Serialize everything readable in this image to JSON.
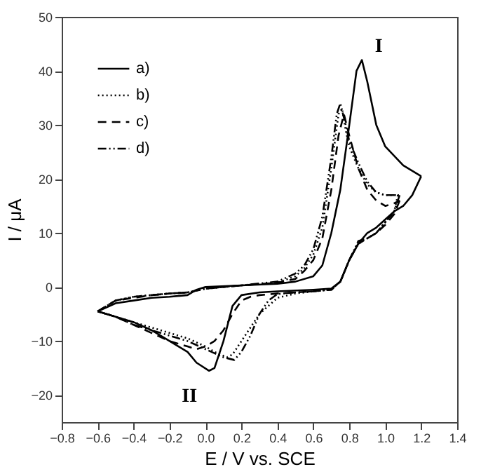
{
  "chart_data": {
    "type": "line",
    "xlabel": "E / V vs. SCE",
    "ylabel": "I / μA",
    "xlim": [
      -0.8,
      1.4
    ],
    "xticks": [
      -0.8,
      -0.6,
      -0.4,
      -0.2,
      {
        "value": 0,
        "label": "0.0"
      },
      0.2,
      0.4,
      0.6,
      0.8,
      {
        "value": 1,
        "label": "1.0"
      },
      1.2,
      1.4
    ],
    "ylim": [
      -25,
      50
    ],
    "yticks": [
      -20,
      -10,
      0,
      10,
      20,
      30,
      40,
      50
    ],
    "grid": false,
    "legend": "top left",
    "annotations": [
      {
        "text": "I",
        "x": 0.87,
        "y": 42
      },
      {
        "text": "II",
        "x": 0.02,
        "y": -15.5
      }
    ],
    "series": [
      {
        "name": "a)",
        "color": "#000000",
        "line_style": "solid",
        "x": [
          -0.6,
          -0.5,
          -0.4,
          -0.3,
          -0.2,
          -0.1,
          -0.05,
          0.0,
          0.2,
          0.4,
          0.5,
          0.6,
          0.65,
          0.7,
          0.75,
          0.8,
          0.84,
          0.87,
          0.9,
          0.95,
          1.0,
          1.1,
          1.2
        ],
        "values": [
          -4.5,
          -3,
          -2.5,
          -2,
          -1.8,
          -1.5,
          -0.5,
          0,
          0.3,
          0.6,
          1,
          2,
          4,
          10,
          18,
          30,
          40,
          42,
          38,
          30,
          26,
          22.5,
          20.5
        ]
      },
      {
        "color": "#000000",
        "line_style": "solid",
        "x": [
          1.2,
          1.15,
          1.1,
          1.05,
          1.0,
          0.95,
          0.9,
          0.85,
          0.8,
          0.75,
          0.7,
          0.6,
          0.4,
          0.3,
          0.2,
          0.15,
          0.1,
          0.05,
          0.02,
          -0.05,
          -0.1,
          -0.2,
          -0.3,
          -0.4,
          -0.5,
          -0.6
        ],
        "values": [
          20.5,
          17,
          15,
          14,
          12.5,
          11,
          10,
          8,
          5,
          1,
          -0.3,
          -0.5,
          -0.8,
          -1,
          -1.5,
          -3.5,
          -10,
          -15,
          -15.5,
          -14,
          -12,
          -10,
          -8,
          -6.5,
          -5.5,
          -4.5
        ]
      },
      {
        "name": "b)",
        "color": "#000000",
        "line_style": "dotted",
        "x": [
          -0.6,
          -0.5,
          -0.4,
          -0.3,
          -0.2,
          -0.1,
          0.0,
          0.2,
          0.4,
          0.5,
          0.55,
          0.6,
          0.65,
          0.7,
          0.74,
          0.76,
          0.78,
          0.8,
          0.85,
          0.9,
          0.95,
          1.0,
          1.07
        ],
        "values": [
          -4.5,
          -2.5,
          -1.8,
          -1.5,
          -1.2,
          -1,
          -0.3,
          0.3,
          0.8,
          2,
          3.5,
          6,
          11,
          22,
          32,
          33,
          29,
          26,
          22,
          19,
          17.5,
          17,
          17
        ]
      },
      {
        "color": "#000000",
        "line_style": "dotted",
        "x": [
          1.07,
          1.05,
          1.0,
          0.95,
          0.9,
          0.85,
          0.8,
          0.75,
          0.7,
          0.6,
          0.5,
          0.4,
          0.3,
          0.2,
          0.15,
          0.12,
          0.05,
          0.0,
          -0.1,
          -0.2,
          -0.3,
          -0.4,
          -0.5,
          -0.6
        ],
        "values": [
          17,
          14,
          12,
          10,
          9,
          8,
          5,
          1,
          -0.5,
          -0.8,
          -1.2,
          -2,
          -5,
          -10,
          -12.5,
          -13,
          -12,
          -11,
          -9.5,
          -8.5,
          -7.5,
          -6.5,
          -5.5,
          -4.5
        ]
      },
      {
        "name": "c)",
        "color": "#000000",
        "line_style": "dashed",
        "x": [
          -0.6,
          -0.5,
          -0.4,
          -0.3,
          -0.2,
          -0.1,
          0.0,
          0.2,
          0.4,
          0.5,
          0.55,
          0.6,
          0.65,
          0.7,
          0.74,
          0.77,
          0.8,
          0.85,
          0.9,
          0.95,
          1.0,
          1.05,
          1.08
        ],
        "values": [
          -4.5,
          -2.5,
          -2,
          -1.5,
          -1.2,
          -1,
          -0.3,
          0.3,
          0.8,
          1.5,
          3,
          5,
          9,
          18,
          28,
          32,
          28,
          22,
          18,
          16,
          15,
          15.5,
          16
        ]
      },
      {
        "color": "#000000",
        "line_style": "dashed",
        "x": [
          1.08,
          1.05,
          1.0,
          0.95,
          0.9,
          0.85,
          0.8,
          0.75,
          0.7,
          0.6,
          0.5,
          0.4,
          0.3,
          0.25,
          0.2,
          0.15,
          0.1,
          0.05,
          0.0,
          -0.05,
          -0.1,
          -0.2,
          -0.3,
          -0.4,
          -0.5,
          -0.6
        ],
        "values": [
          16,
          13.5,
          11.5,
          10,
          9,
          8,
          5,
          1,
          -0.5,
          -0.8,
          -1,
          -1.2,
          -1.5,
          -1.8,
          -2.5,
          -5,
          -8,
          -10,
          -11,
          -11.5,
          -11,
          -10,
          -8.5,
          -7,
          -5.5,
          -4.5
        ]
      },
      {
        "name": "d)",
        "color": "#000000",
        "line_style": "dashdot",
        "x": [
          -0.6,
          -0.5,
          -0.4,
          -0.3,
          -0.2,
          -0.1,
          0.0,
          0.2,
          0.4,
          0.5,
          0.55,
          0.6,
          0.65,
          0.7,
          0.73,
          0.75,
          0.78,
          0.8,
          0.85,
          0.9,
          0.95,
          1.0,
          1.08
        ],
        "values": [
          -4.5,
          -2.5,
          -1.8,
          -1.5,
          -1.2,
          -1,
          -0.3,
          0.3,
          1,
          2.5,
          4,
          7,
          13,
          24,
          32,
          34,
          30,
          27,
          23,
          19.5,
          17.5,
          17,
          17
        ]
      },
      {
        "color": "#000000",
        "line_style": "dashdot",
        "x": [
          1.08,
          1.05,
          1.0,
          0.95,
          0.9,
          0.85,
          0.8,
          0.75,
          0.7,
          0.6,
          0.5,
          0.4,
          0.35,
          0.3,
          0.25,
          0.2,
          0.16,
          0.1,
          0.0,
          -0.1,
          -0.2,
          -0.3,
          -0.4,
          -0.5,
          -0.6
        ],
        "values": [
          17,
          14,
          12,
          10,
          9,
          8.5,
          5,
          1,
          -0.5,
          -0.8,
          -1,
          -1.3,
          -2.5,
          -5,
          -9,
          -12,
          -13.5,
          -13,
          -11.5,
          -10,
          -9,
          -8,
          -7,
          -5.5,
          -4.5
        ]
      }
    ]
  }
}
